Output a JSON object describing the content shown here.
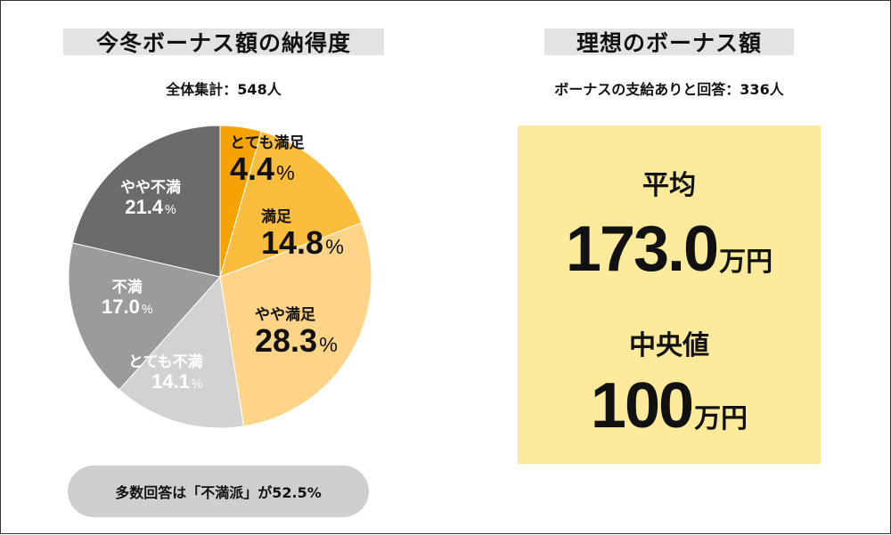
{
  "left_panel": {
    "title": "今冬ボーナス額の納得度",
    "subtitle": "全体集計：548人",
    "summary": "多数回答は「不満派」が52.5%"
  },
  "right_panel": {
    "title": "理想のボーナス額",
    "subtitle": "ボーナスの支給ありと回答：336人",
    "average_label": "平均",
    "average_value": "173.0",
    "average_unit": "万円",
    "median_label": "中央値",
    "median_value": "100",
    "median_unit": "万円",
    "box_color": "#fdea9a"
  },
  "chart_data": {
    "type": "pie",
    "title": "今冬ボーナス額の納得度",
    "total_respondents": 548,
    "unit": "%",
    "start_angle_deg": 0,
    "direction": "clockwise",
    "slices": [
      {
        "name": "とても満足",
        "value": 4.4,
        "pct_text": "4.4",
        "color": "#f5a300"
      },
      {
        "name": "満足",
        "value": 14.8,
        "pct_text": "14.8",
        "color": "#fbbd3d"
      },
      {
        "name": "やや満足",
        "value": 28.3,
        "pct_text": "28.3",
        "color": "#fdd488"
      },
      {
        "name": "とても不満",
        "value": 14.1,
        "pct_text": "14.1",
        "color": "#d2d2d2"
      },
      {
        "name": "不満",
        "value": 17.0,
        "pct_text": "17.0",
        "color": "#9b9b9b"
      },
      {
        "name": "やや不満",
        "value": 21.4,
        "pct_text": "21.4",
        "color": "#6b6b6b"
      }
    ]
  }
}
